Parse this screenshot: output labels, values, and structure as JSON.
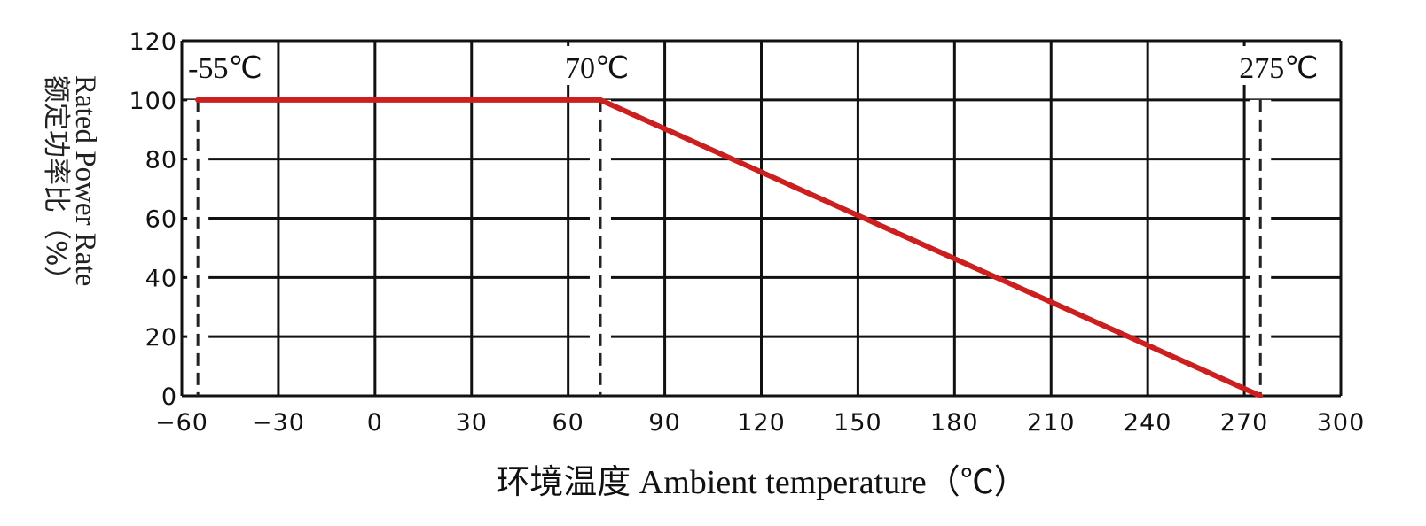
{
  "chart_data": {
    "type": "line",
    "xlabel": "环境温度 Ambient temperature（℃）",
    "ylabel_en": "Rated Power Rate",
    "ylabel_cn": "额定功率比（%）",
    "xlim": [
      -60,
      300
    ],
    "ylim": [
      0,
      120
    ],
    "x_ticks": [
      "−60",
      "−30",
      "0",
      "30",
      "60",
      "90",
      "120",
      "150",
      "180",
      "210",
      "240",
      "270",
      "300"
    ],
    "y_ticks": [
      "120",
      "100",
      "80",
      "60",
      "40",
      "20",
      "0"
    ],
    "grid": true,
    "series": [
      {
        "x": [
          -55,
          70,
          275
        ],
        "y": [
          100,
          100,
          0
        ],
        "color": "#cc1f1f"
      }
    ],
    "markers": [
      {
        "x": -55,
        "label": "-55℃"
      },
      {
        "x": 70,
        "label": "70℃"
      },
      {
        "x": 275,
        "label": "275℃"
      }
    ]
  }
}
